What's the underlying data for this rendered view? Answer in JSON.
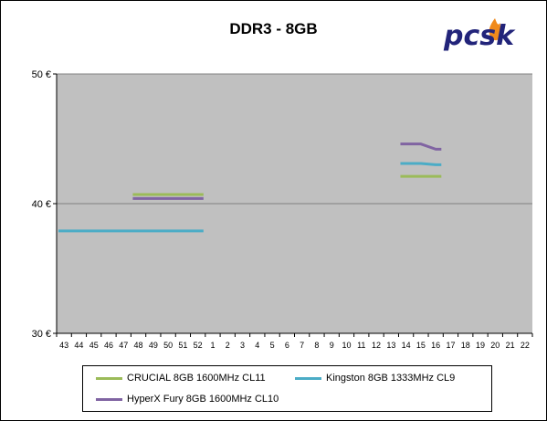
{
  "colors": {
    "plot_background": "#c0c0c0",
    "gridline": "#808080",
    "logo_text": "#22247a",
    "logo_flame": "#f08a1c"
  },
  "logo": {
    "text": "pcsk"
  },
  "chart_data": {
    "type": "line",
    "title": "DDR3 - 8GB",
    "xlabel": "",
    "ylabel": "",
    "categories": [
      "43",
      "44",
      "45",
      "46",
      "47",
      "48",
      "49",
      "50",
      "51",
      "52",
      "1",
      "2",
      "3",
      "4",
      "5",
      "6",
      "7",
      "8",
      "9",
      "10",
      "11",
      "12",
      "13",
      "14",
      "15",
      "16",
      "17",
      "18",
      "19",
      "20",
      "21",
      "22"
    ],
    "y_ticks": [
      {
        "value": 30,
        "label": "30 €"
      },
      {
        "value": 40,
        "label": "40 €"
      },
      {
        "value": 50,
        "label": "50 €"
      }
    ],
    "ylim": [
      30,
      50
    ],
    "grid": true,
    "legend_position": "bottom",
    "series": [
      {
        "name": "CRUCIAL 8GB 1600MHz CL11",
        "color": "#9bbb59",
        "values": [
          null,
          null,
          null,
          null,
          null,
          40.7,
          40.7,
          40.7,
          40.7,
          40.7,
          null,
          null,
          null,
          null,
          null,
          null,
          null,
          null,
          null,
          null,
          null,
          null,
          null,
          42.1,
          42.1,
          42.1,
          null,
          null,
          null,
          null,
          null,
          null
        ]
      },
      {
        "name": "Kingston 8GB 1333MHz CL9",
        "color": "#4bacc6",
        "values": [
          37.9,
          37.9,
          37.9,
          37.9,
          37.9,
          37.9,
          37.9,
          37.9,
          37.9,
          37.9,
          null,
          null,
          null,
          null,
          null,
          null,
          null,
          null,
          null,
          null,
          null,
          null,
          null,
          43.1,
          43.1,
          43.0,
          null,
          null,
          null,
          null,
          null,
          null
        ]
      },
      {
        "name": "HyperX Fury 8GB 1600MHz CL10",
        "color": "#8064a2",
        "values": [
          null,
          null,
          null,
          null,
          null,
          40.4,
          40.4,
          40.4,
          40.4,
          40.4,
          null,
          null,
          null,
          null,
          null,
          null,
          null,
          null,
          null,
          null,
          null,
          null,
          null,
          44.6,
          44.6,
          44.2,
          null,
          null,
          null,
          null,
          null,
          null
        ]
      }
    ]
  }
}
